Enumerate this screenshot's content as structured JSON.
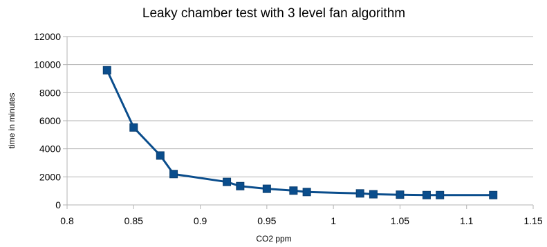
{
  "chart_data": {
    "type": "scatter",
    "title": "Leaky chamber test with 3 level fan algorithm",
    "xlabel": "CO2 ppm",
    "ylabel": "time in minutes",
    "xlim": [
      0.8,
      1.15
    ],
    "ylim": [
      0,
      12000
    ],
    "x_ticks": [
      "0.8",
      "0.85",
      "0.9",
      "0.95",
      "1",
      "1.05",
      "1.1",
      "1.15"
    ],
    "y_ticks": [
      "0",
      "2000",
      "4000",
      "6000",
      "8000",
      "10000",
      "12000"
    ],
    "grid": "horizontal",
    "marker": "square",
    "series": [
      {
        "color": "#0a4d8c",
        "points": [
          {
            "x": 0.83,
            "y": 9600
          },
          {
            "x": 0.85,
            "y": 5520
          },
          {
            "x": 0.87,
            "y": 3520
          },
          {
            "x": 0.88,
            "y": 2200
          },
          {
            "x": 0.92,
            "y": 1640
          },
          {
            "x": 0.93,
            "y": 1340
          },
          {
            "x": 0.95,
            "y": 1150
          },
          {
            "x": 0.97,
            "y": 1020
          },
          {
            "x": 0.98,
            "y": 920
          },
          {
            "x": 1.02,
            "y": 820
          },
          {
            "x": 1.03,
            "y": 760
          },
          {
            "x": 1.05,
            "y": 730
          },
          {
            "x": 1.07,
            "y": 700
          },
          {
            "x": 1.08,
            "y": 700
          },
          {
            "x": 1.12,
            "y": 700
          }
        ]
      }
    ]
  }
}
